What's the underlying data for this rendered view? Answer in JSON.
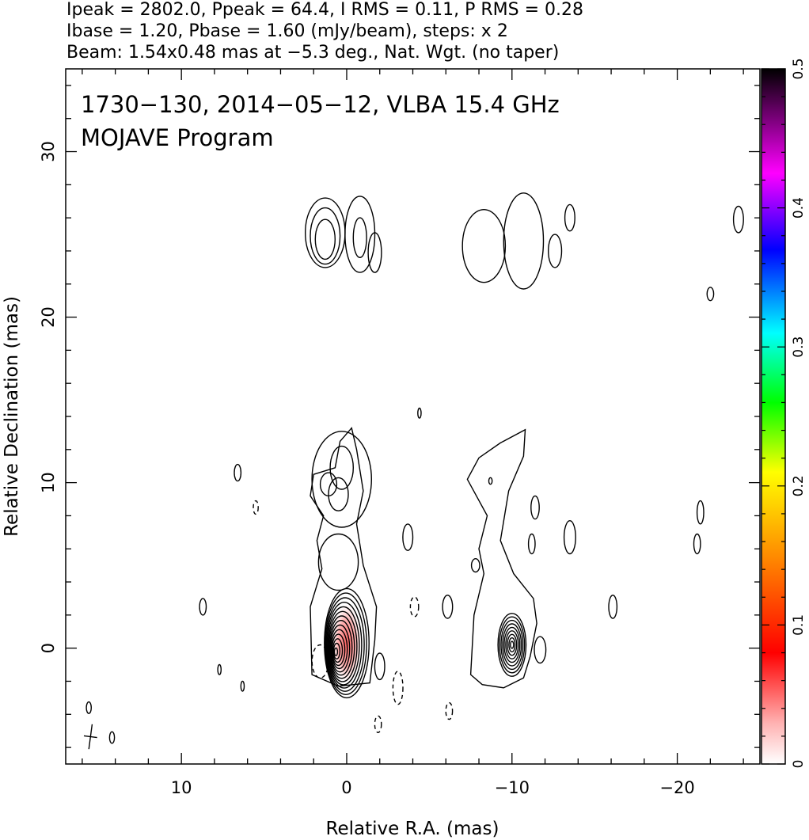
{
  "header": {
    "line1": "Ipeak = 2802.0, Ppeak = 64.4, I RMS = 0.11, P RMS = 0.28",
    "line2": "Ibase = 1.20, Pbase = 1.60 (mJy/beam), steps: x 2",
    "line3": "Beam: 1.54x0.48 mas at −5.3 deg., Nat. Wgt. (no taper)"
  },
  "chart_data": {
    "type": "contour",
    "title": "1730−130, 2014−05−12, VLBA 15.4 GHz",
    "subtitle": "MOJAVE Program",
    "xlabel": "Relative R.A. (mas)",
    "ylabel": "Relative Declination (mas)",
    "xlim": [
      17,
      -25
    ],
    "ylim": [
      -7,
      35
    ],
    "x_ticks": [
      10,
      0,
      -10,
      -20
    ],
    "x_tick_labels": [
      "10",
      "0",
      "−10",
      "−20"
    ],
    "y_ticks": [
      0,
      10,
      20,
      30
    ],
    "y_tick_labels": [
      "0",
      "10",
      "20",
      "30"
    ],
    "colorbar": {
      "range": [
        0,
        0.5
      ],
      "ticks": [
        0,
        0.1,
        0.2,
        0.3,
        0.4,
        0.5
      ],
      "tick_labels": [
        "0",
        "0.1",
        "0.2",
        "0.3",
        "0.4",
        "0.5"
      ],
      "colors": [
        "#ffffff",
        "#ff0000",
        "#ff8c00",
        "#ffff00",
        "#00ff00",
        "#00ffff",
        "#0000ff",
        "#ff00ff",
        "#000000"
      ]
    },
    "contours": {
      "base_mJy_per_beam": 1.2,
      "step_factor": 2,
      "core_center": [
        0,
        0.3
      ],
      "core_levels": 14,
      "secondary_center": [
        -10,
        0.2
      ],
      "secondary_levels": 9
    },
    "components": [
      {
        "x": 1.3,
        "y": 24.7,
        "w": 0.6,
        "h": 1.2
      },
      {
        "x": 1.3,
        "y": 24.9,
        "w": 0.9,
        "h": 1.7
      },
      {
        "x": 1.3,
        "y": 25.1,
        "w": 1.2,
        "h": 2.1
      },
      {
        "x": -0.8,
        "y": 25.0,
        "w": 0.9,
        "h": 2.3
      },
      {
        "x": -0.8,
        "y": 24.8,
        "w": 0.4,
        "h": 1.2
      },
      {
        "x": -1.7,
        "y": 23.9,
        "w": 0.4,
        "h": 1.2
      },
      {
        "x": -8.3,
        "y": 24.3,
        "w": 1.3,
        "h": 2.2
      },
      {
        "x": -10.7,
        "y": 24.6,
        "w": 1.2,
        "h": 2.9
      },
      {
        "x": -12.6,
        "y": 24.0,
        "w": 0.4,
        "h": 1.0
      },
      {
        "x": -13.5,
        "y": 26.0,
        "w": 0.3,
        "h": 0.8
      },
      {
        "x": -23.7,
        "y": 25.9,
        "w": 0.3,
        "h": 0.8
      },
      {
        "x": -22.0,
        "y": 21.4,
        "w": 0.2,
        "h": 0.4
      },
      {
        "x": 0.3,
        "y": 10.9,
        "w": 0.7,
        "h": 1.3
      },
      {
        "x": 1.1,
        "y": 9.9,
        "w": 0.5,
        "h": 0.7
      },
      {
        "x": 0.5,
        "y": 9.3,
        "w": 0.6,
        "h": 1.0
      },
      {
        "x": 0.3,
        "y": 10.2,
        "w": 1.8,
        "h": 2.9
      },
      {
        "x": 0.5,
        "y": 5.2,
        "w": 1.2,
        "h": 1.7
      },
      {
        "x": 6.6,
        "y": 10.6,
        "w": 0.2,
        "h": 0.5
      },
      {
        "x": 8.7,
        "y": 2.5,
        "w": 0.2,
        "h": 0.5
      },
      {
        "x": 7.7,
        "y": -1.3,
        "w": 0.1,
        "h": 0.3
      },
      {
        "x": 6.3,
        "y": -2.3,
        "w": 0.1,
        "h": 0.3
      },
      {
        "x": 15.6,
        "y": -3.6,
        "w": 0.15,
        "h": 0.35
      },
      {
        "x": 14.2,
        "y": -5.4,
        "w": 0.15,
        "h": 0.35
      },
      {
        "x": -3.7,
        "y": 6.7,
        "w": 0.3,
        "h": 0.8
      },
      {
        "x": -6.1,
        "y": 2.5,
        "w": 0.3,
        "h": 0.7
      },
      {
        "x": -11.4,
        "y": 8.5,
        "w": 0.25,
        "h": 0.7
      },
      {
        "x": -11.2,
        "y": 6.3,
        "w": 0.2,
        "h": 0.6
      },
      {
        "x": -13.5,
        "y": 6.7,
        "w": 0.35,
        "h": 1.0
      },
      {
        "x": -16.1,
        "y": 2.5,
        "w": 0.25,
        "h": 0.7
      },
      {
        "x": -21.2,
        "y": 6.3,
        "w": 0.2,
        "h": 0.6
      },
      {
        "x": -21.4,
        "y": 8.2,
        "w": 0.2,
        "h": 0.7
      },
      {
        "x": -11.7,
        "y": -0.1,
        "w": 0.35,
        "h": 0.8
      },
      {
        "x": -8.7,
        "y": 10.1,
        "w": 0.1,
        "h": 0.2
      },
      {
        "x": -7.8,
        "y": 5.0,
        "w": 0.25,
        "h": 0.4
      },
      {
        "x": -4.4,
        "y": 14.2,
        "w": 0.1,
        "h": 0.3
      },
      {
        "x": -2.0,
        "y": -1.1,
        "w": 0.3,
        "h": 0.8
      }
    ],
    "negative_components": [
      {
        "x": 1.6,
        "y": -0.8,
        "w": 0.5,
        "h": 1.0
      },
      {
        "x": 5.5,
        "y": 8.5,
        "w": 0.15,
        "h": 0.4
      },
      {
        "x": -4.1,
        "y": 2.5,
        "w": 0.25,
        "h": 0.6
      },
      {
        "x": -3.1,
        "y": -2.4,
        "w": 0.3,
        "h": 1.0
      },
      {
        "x": -1.9,
        "y": -4.6,
        "w": 0.2,
        "h": 0.5
      },
      {
        "x": -6.2,
        "y": -3.8,
        "w": 0.2,
        "h": 0.5
      }
    ]
  }
}
